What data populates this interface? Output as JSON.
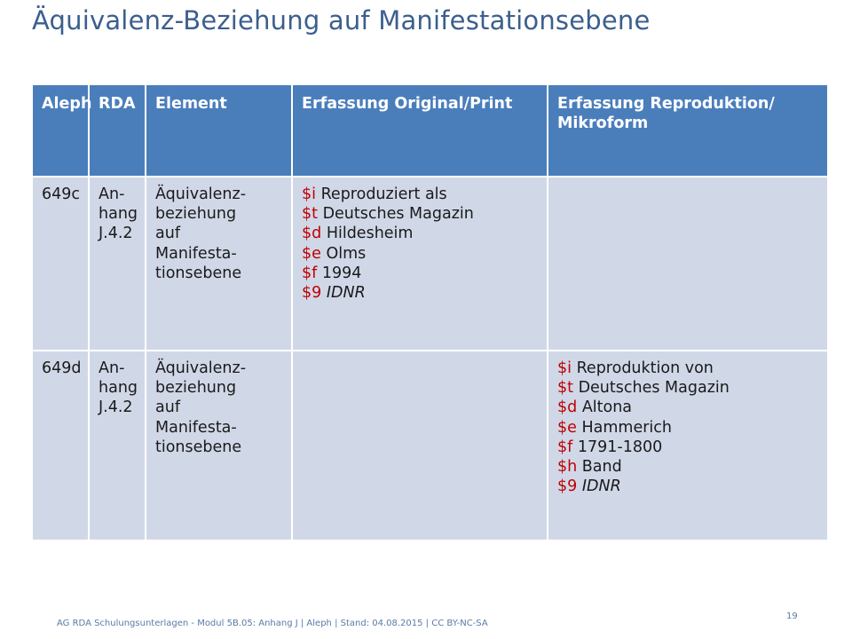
{
  "title": "Äquivalenz-Beziehung auf Manifestationsebene",
  "table": {
    "headers": [
      "Aleph",
      "RDA",
      "Element",
      "Erfassung Original/Print",
      "Erfassung Reproduktion/ Mikroform"
    ],
    "rows": [
      {
        "aleph": "649c",
        "rda": [
          "An-",
          "hang",
          "J.4.2"
        ],
        "element": [
          "Äquivalenz-",
          "beziehung",
          "auf",
          "Manifesta-",
          "tionsebene"
        ],
        "original": [
          {
            "code": "$i",
            "text": " Reproduziert als",
            "italic": false
          },
          {
            "code": "$t",
            "text": " Deutsches Magazin",
            "italic": false
          },
          {
            "code": "$d",
            "text": " Hildesheim",
            "italic": false
          },
          {
            "code": "$e",
            "text": " Olms",
            "italic": false
          },
          {
            "code": "$f",
            "text": " 1994",
            "italic": false
          },
          {
            "code": "$9",
            "text": " IDNR",
            "italic": true
          }
        ],
        "reproduktion": []
      },
      {
        "aleph": "649d",
        "rda": [
          "An-",
          "hang",
          "J.4.2"
        ],
        "element": [
          "Äquivalenz-",
          "beziehung",
          "auf",
          "Manifesta-",
          "tionsebene"
        ],
        "original": [],
        "reproduktion": [
          {
            "code": "$i",
            "text": " Reproduktion von",
            "italic": false
          },
          {
            "code": "$t",
            "text": " Deutsches Magazin",
            "italic": false
          },
          {
            "code": "$d",
            "text": " Altona",
            "italic": false
          },
          {
            "code": "$e",
            "text": " Hammerich",
            "italic": false
          },
          {
            "code": "$f",
            "text": " 1791-1800",
            "italic": false
          },
          {
            "code": "$h",
            "text": " Band",
            "italic": false
          },
          {
            "code": "$9",
            "text": " IDNR",
            "italic": true
          }
        ]
      }
    ]
  },
  "footer": "AG RDA Schulungsunterlagen - Modul 5B.05: Anhang J | Aleph | Stand: 04.08.2015 | CC BY-NC-SA",
  "page_number": "19",
  "colors": {
    "title": "#3b5f8e",
    "header_bg": "#4a7ebb",
    "row_bg": "#d0d8e8",
    "subfield_code": "#c00000"
  }
}
